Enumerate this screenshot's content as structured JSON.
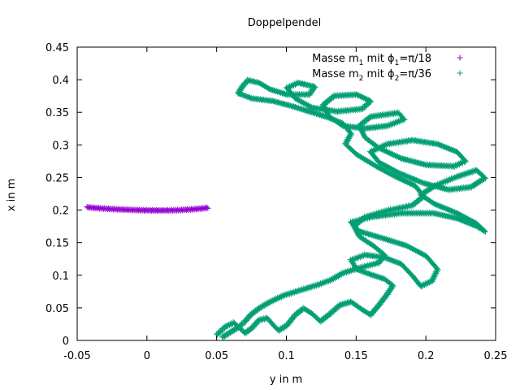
{
  "chart_data": {
    "type": "scatter",
    "title": "Doppelpendel",
    "xlabel": "y in m",
    "ylabel": "x in m",
    "xlim": [
      -0.05,
      0.25
    ],
    "ylim": [
      0,
      0.45
    ],
    "x_ticks": [
      "-0.05",
      "0",
      "0.05",
      "0.1",
      "0.15",
      "0.2",
      "0.25"
    ],
    "y_ticks": [
      "0",
      "0.05",
      "0.1",
      "0.15",
      "0.2",
      "0.25",
      "0.3",
      "0.35",
      "0.4",
      "0.45"
    ],
    "legend_position": "top-right",
    "legend": {
      "m1": {
        "prefix": "Masse m",
        "sub": "1",
        "mid": " mit  ",
        "phi_sub": "1",
        "suffix": "=π/18"
      },
      "m2": {
        "prefix": "Masse m",
        "sub": "2",
        "mid": " mit  ",
        "phi_sub": "2",
        "suffix": "=π/36"
      }
    },
    "series": [
      {
        "color": "#9400d3",
        "marker": "plus",
        "points": [
          [
            -0.043,
            0.205
          ],
          [
            -0.036,
            0.2038
          ],
          [
            -0.029,
            0.2028
          ],
          [
            -0.022,
            0.202
          ],
          [
            -0.015,
            0.2013
          ],
          [
            -0.008,
            0.2008
          ],
          [
            0.0,
            0.2004
          ],
          [
            0.008,
            0.2002
          ],
          [
            0.015,
            0.2003
          ],
          [
            0.022,
            0.2007
          ],
          [
            0.029,
            0.2015
          ],
          [
            0.036,
            0.2026
          ],
          [
            0.043,
            0.2042
          ]
        ]
      },
      {
        "color": "#009e73",
        "marker": "plus",
        "points": [
          [
            0.05,
            0.01
          ],
          [
            0.056,
            0.022
          ],
          [
            0.062,
            0.028
          ],
          [
            0.066,
            0.02
          ],
          [
            0.07,
            0.012
          ],
          [
            0.075,
            0.02
          ],
          [
            0.08,
            0.032
          ],
          [
            0.086,
            0.035
          ],
          [
            0.09,
            0.025
          ],
          [
            0.094,
            0.016
          ],
          [
            0.1,
            0.024
          ],
          [
            0.106,
            0.04
          ],
          [
            0.112,
            0.05
          ],
          [
            0.118,
            0.042
          ],
          [
            0.124,
            0.03
          ],
          [
            0.13,
            0.04
          ],
          [
            0.138,
            0.055
          ],
          [
            0.146,
            0.06
          ],
          [
            0.154,
            0.048
          ],
          [
            0.16,
            0.04
          ],
          [
            0.166,
            0.055
          ],
          [
            0.172,
            0.072
          ],
          [
            0.176,
            0.085
          ],
          [
            0.17,
            0.095
          ],
          [
            0.16,
            0.102
          ],
          [
            0.15,
            0.11
          ],
          [
            0.146,
            0.124
          ],
          [
            0.156,
            0.132
          ],
          [
            0.17,
            0.128
          ],
          [
            0.182,
            0.118
          ],
          [
            0.19,
            0.1
          ],
          [
            0.196,
            0.084
          ],
          [
            0.204,
            0.092
          ],
          [
            0.208,
            0.11
          ],
          [
            0.2,
            0.13
          ],
          [
            0.186,
            0.146
          ],
          [
            0.168,
            0.158
          ],
          [
            0.152,
            0.168
          ],
          [
            0.146,
            0.182
          ],
          [
            0.16,
            0.19
          ],
          [
            0.182,
            0.196
          ],
          [
            0.205,
            0.196
          ],
          [
            0.222,
            0.188
          ],
          [
            0.236,
            0.176
          ],
          [
            0.242,
            0.168
          ],
          [
            0.236,
            0.18
          ],
          [
            0.222,
            0.196
          ],
          [
            0.206,
            0.21
          ],
          [
            0.196,
            0.224
          ],
          [
            0.206,
            0.238
          ],
          [
            0.222,
            0.252
          ],
          [
            0.236,
            0.262
          ],
          [
            0.242,
            0.25
          ],
          [
            0.232,
            0.236
          ],
          [
            0.216,
            0.232
          ],
          [
            0.198,
            0.242
          ],
          [
            0.18,
            0.258
          ],
          [
            0.166,
            0.274
          ],
          [
            0.16,
            0.29
          ],
          [
            0.172,
            0.302
          ],
          [
            0.19,
            0.308
          ],
          [
            0.208,
            0.302
          ],
          [
            0.222,
            0.29
          ],
          [
            0.228,
            0.276
          ],
          [
            0.22,
            0.268
          ],
          [
            0.2,
            0.27
          ],
          [
            0.182,
            0.28
          ],
          [
            0.166,
            0.296
          ],
          [
            0.156,
            0.312
          ],
          [
            0.152,
            0.33
          ],
          [
            0.16,
            0.344
          ],
          [
            0.18,
            0.35
          ],
          [
            0.184,
            0.34
          ],
          [
            0.172,
            0.33
          ],
          [
            0.156,
            0.326
          ],
          [
            0.14,
            0.33
          ],
          [
            0.13,
            0.345
          ],
          [
            0.126,
            0.362
          ],
          [
            0.134,
            0.376
          ],
          [
            0.15,
            0.378
          ],
          [
            0.16,
            0.368
          ],
          [
            0.154,
            0.356
          ],
          [
            0.136,
            0.352
          ],
          [
            0.118,
            0.358
          ],
          [
            0.106,
            0.372
          ],
          [
            0.1,
            0.388
          ],
          [
            0.108,
            0.396
          ],
          [
            0.12,
            0.39
          ],
          [
            0.116,
            0.378
          ],
          [
            0.1,
            0.378
          ],
          [
            0.088,
            0.386
          ],
          [
            0.08,
            0.396
          ],
          [
            0.072,
            0.4
          ],
          [
            0.068,
            0.39
          ],
          [
            0.065,
            0.38
          ],
          [
            0.075,
            0.372
          ],
          [
            0.09,
            0.368
          ],
          [
            0.104,
            0.36
          ],
          [
            0.116,
            0.352
          ],
          [
            0.128,
            0.344
          ],
          [
            0.14,
            0.334
          ],
          [
            0.146,
            0.318
          ],
          [
            0.142,
            0.302
          ],
          [
            0.15,
            0.286
          ],
          [
            0.164,
            0.268
          ],
          [
            0.178,
            0.252
          ],
          [
            0.192,
            0.238
          ],
          [
            0.198,
            0.222
          ],
          [
            0.19,
            0.208
          ],
          [
            0.172,
            0.2
          ],
          [
            0.156,
            0.19
          ],
          [
            0.148,
            0.176
          ],
          [
            0.152,
            0.16
          ],
          [
            0.162,
            0.146
          ],
          [
            0.17,
            0.132
          ],
          [
            0.166,
            0.12
          ],
          [
            0.152,
            0.112
          ],
          [
            0.14,
            0.104
          ],
          [
            0.132,
            0.094
          ],
          [
            0.122,
            0.086
          ],
          [
            0.11,
            0.078
          ],
          [
            0.098,
            0.07
          ],
          [
            0.088,
            0.06
          ],
          [
            0.08,
            0.05
          ],
          [
            0.074,
            0.04
          ],
          [
            0.07,
            0.03
          ],
          [
            0.066,
            0.022
          ],
          [
            0.06,
            0.014
          ],
          [
            0.054,
            0.006
          ]
        ]
      }
    ]
  }
}
